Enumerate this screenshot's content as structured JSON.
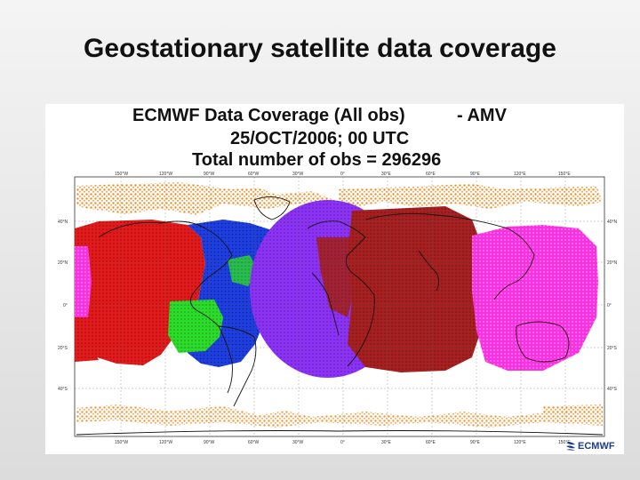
{
  "slide": {
    "title": "Geostationary satellite data coverage"
  },
  "header": {
    "title": "ECMWF Data Coverage (All obs)",
    "subset": "- AMV",
    "date": "25/OCT/2006; 00 UTC",
    "total": "Total number of obs = 296296"
  },
  "map": {
    "lon_labels": [
      "150°W",
      "120°W",
      "90°W",
      "60°W",
      "30°W",
      "0°",
      "30°E",
      "60°E",
      "90°E",
      "120°E",
      "150°E"
    ],
    "lat_labels_left": [
      "40°N",
      "20°N",
      "0°",
      "20°S",
      "40°S"
    ],
    "lat_labels_right": [
      "40°N",
      "20°N",
      "0°",
      "20°S",
      "40°S"
    ],
    "satellite_colors": {
      "polar": "#f08c1e",
      "goes_west": "#dd1111",
      "goes_east": "#1a3ad8",
      "goes_east_green": "#22dd22",
      "meteosat": "#8a2be2",
      "meteosat_indian": "#a01818",
      "mtsat": "#ff22dd",
      "other": "#ff44cc"
    }
  },
  "logo": {
    "text": "ECMWF"
  }
}
